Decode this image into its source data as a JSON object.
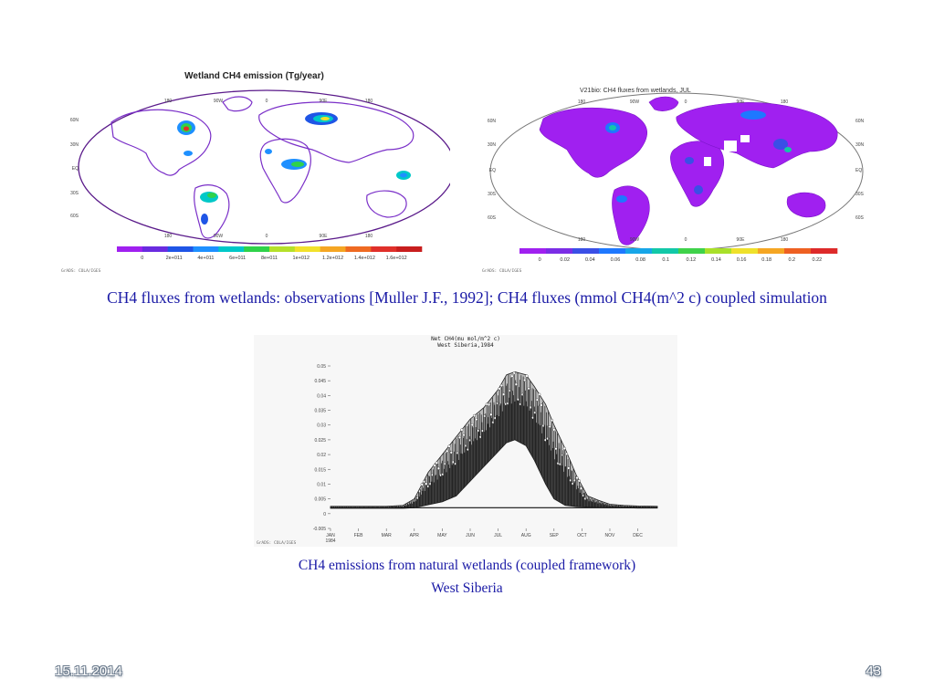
{
  "left_map": {
    "title": "Wetland CH4 emission (Tg/year)",
    "lon_labels": [
      "180",
      "90W",
      "0",
      "90E",
      "180"
    ],
    "lat_labels_left": [
      "60N",
      "30N",
      "EQ",
      "30S",
      "60S"
    ],
    "lat_labels_right": [
      "60N",
      "30N",
      "EQ",
      "30S",
      "60S"
    ],
    "bottom_lon_labels": [
      "180",
      "90W",
      "0",
      "90E",
      "180"
    ],
    "legend_labels": [
      "0",
      "2e+011",
      "4e+011",
      "6e+011",
      "8e+011",
      "1e+012",
      "1.2e+012",
      "1.4e+012",
      "1.6e+012"
    ],
    "legend_colors": [
      "#a020f0",
      "#6a2be0",
      "#1f55e6",
      "#1e90ff",
      "#00c8c8",
      "#2fd24a",
      "#b5e02a",
      "#f2e12b",
      "#f5a623",
      "#ef6a22",
      "#e0302a",
      "#c81e1e"
    ],
    "credit": "GrADS: COLA/IGES"
  },
  "right_map": {
    "title": "V21bio: CH4 fluxes from wetlands, JUL",
    "lon_labels": [
      "180",
      "90W",
      "0",
      "90E",
      "180"
    ],
    "lat_labels_left": [
      "60N",
      "30N",
      "EQ",
      "30S",
      "60S"
    ],
    "lat_labels_right": [
      "60N",
      "30N",
      "EQ",
      "30S",
      "60S"
    ],
    "bottom_lon_labels": [
      "180",
      "90W",
      "0",
      "90E",
      "180"
    ],
    "legend_labels": [
      "0",
      "0.02",
      "0.04",
      "0.06",
      "0.08",
      "0.1",
      "0.12",
      "0.14",
      "0.16",
      "0.18",
      "0.2",
      "0.22"
    ],
    "legend_colors": [
      "#a020f0",
      "#7b2de6",
      "#3a4fe6",
      "#1e78ff",
      "#17a6e8",
      "#12c8a8",
      "#3fd24a",
      "#a9e02a",
      "#efe12b",
      "#f5a623",
      "#ee6022",
      "#dd2a2a"
    ],
    "credit": "GrADS: COLA/IGES"
  },
  "caption_top": "CH4 fluxes from wetlands: observations [Muller J.F., 1992];   CH4 fluxes (mmol CH4(m^2 c) coupled simulation",
  "chart_panel": {
    "credit": "GrADS: COLA/IGES"
  },
  "chart_data": {
    "type": "line",
    "title": "Net CH4(mu mol/m^2 c)",
    "subtitle": "West Siberia,1984",
    "y_ticks": [
      "0.05",
      "0.045",
      "0.04",
      "0.035",
      "0.03",
      "0.025",
      "0.02",
      "0.015",
      "0.01",
      "0.005",
      "0",
      "-0.005"
    ],
    "x_ticks": [
      "JAN",
      "FEB",
      "MAR",
      "APR",
      "MAY",
      "JUN",
      "JUL",
      "AUG",
      "SEP",
      "OCT",
      "NOV",
      "DEC"
    ],
    "x_year": "1984",
    "ylim": [
      -0.005,
      0.05
    ],
    "xlim": [
      1,
      12.7
    ],
    "series": [
      {
        "envelope_x": [
          1,
          2,
          3,
          3.6,
          4,
          4.5,
          5,
          5.5,
          6,
          6.5,
          7,
          7.3,
          7.6,
          8,
          8.3,
          8.7,
          9,
          9.4,
          9.8,
          10.2,
          10.6,
          11,
          11.5,
          12,
          12.7
        ],
        "envelope_high": [
          0.0025,
          0.0025,
          0.0025,
          0.0028,
          0.005,
          0.014,
          0.02,
          0.026,
          0.032,
          0.036,
          0.042,
          0.047,
          0.048,
          0.047,
          0.043,
          0.037,
          0.03,
          0.022,
          0.013,
          0.006,
          0.0045,
          0.0032,
          0.0028,
          0.0026,
          0.0025
        ],
        "envelope_low": [
          0.0018,
          0.0018,
          0.0018,
          0.0018,
          0.002,
          0.003,
          0.004,
          0.006,
          0.011,
          0.016,
          0.021,
          0.024,
          0.025,
          0.023,
          0.018,
          0.01,
          0.005,
          0.0028,
          0.0024,
          0.0022,
          0.0021,
          0.002,
          0.002,
          0.0019,
          0.0019
        ]
      }
    ]
  },
  "caption_bottom_line1": "CH4 emissions from natural wetlands (coupled framework)",
  "caption_bottom_line2": "West Siberia",
  "footer": {
    "date": "15.11.2014",
    "page": "43"
  }
}
